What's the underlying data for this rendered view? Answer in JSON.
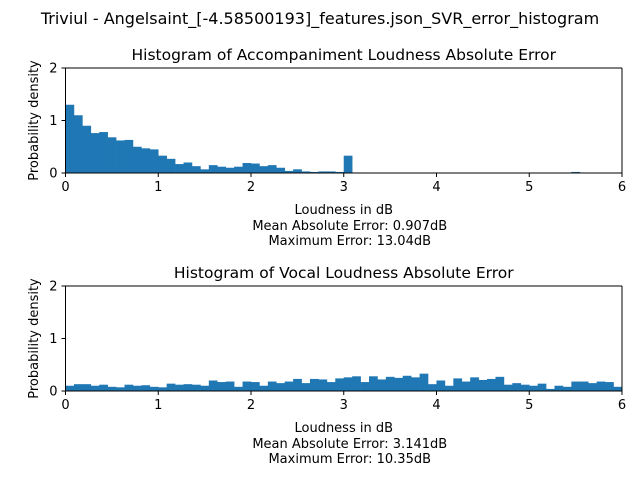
{
  "figure": {
    "title": "Triviul - Angelsaint_[-4.58500193]_features.json_SVR_error_histogram",
    "bar_color": "#1f77b4"
  },
  "chart_data": [
    {
      "type": "bar",
      "title": "Histogram of Accompaniment Loudness Absolute Error",
      "xlabel": "Loudness in dB",
      "ylabel": "Probability density",
      "notes": [
        "Mean Absolute Error: 0.907dB",
        "Maximum Error: 13.04dB"
      ],
      "xlim": [
        0,
        6
      ],
      "ylim": [
        0,
        2
      ],
      "xticks": [
        0,
        1,
        2,
        3,
        4,
        5,
        6
      ],
      "yticks": [
        0,
        1,
        2
      ],
      "bin_width": 0.0909,
      "values": [
        1.3,
        1.1,
        0.9,
        0.76,
        0.78,
        0.68,
        0.62,
        0.63,
        0.5,
        0.47,
        0.45,
        0.33,
        0.27,
        0.17,
        0.2,
        0.13,
        0.07,
        0.15,
        0.12,
        0.1,
        0.12,
        0.19,
        0.18,
        0.13,
        0.15,
        0.1,
        0.04,
        0.07,
        0.03,
        0.02,
        0.03,
        0.03,
        0.02,
        0.33,
        0.01,
        0.0,
        0.0,
        0.0,
        0.0,
        0.0,
        0.0,
        0.0,
        0.0,
        0.0,
        0.0,
        0.0,
        0.0,
        0.0,
        0.0,
        0.0,
        0.0,
        0.0,
        0.0,
        0.0,
        0.0,
        0.0,
        0.0,
        0.0,
        0.0,
        0.0,
        0.02,
        0.0,
        0.0,
        0.0,
        0.0,
        0.0
      ]
    },
    {
      "type": "bar",
      "title": "Histogram of Vocal Loudness Absolute Error",
      "xlabel": "Loudness in dB",
      "ylabel": "Probability density",
      "notes": [
        "Mean Absolute Error: 3.141dB",
        "Maximum Error: 10.35dB"
      ],
      "xlim": [
        0,
        6
      ],
      "ylim": [
        0,
        2
      ],
      "xticks": [
        0,
        1,
        2,
        3,
        4,
        5,
        6
      ],
      "yticks": [
        0,
        1,
        2
      ],
      "bin_width": 0.0909,
      "values": [
        0.1,
        0.13,
        0.13,
        0.1,
        0.12,
        0.08,
        0.07,
        0.12,
        0.1,
        0.11,
        0.08,
        0.07,
        0.14,
        0.12,
        0.13,
        0.12,
        0.1,
        0.2,
        0.17,
        0.18,
        0.08,
        0.18,
        0.17,
        0.1,
        0.18,
        0.15,
        0.18,
        0.23,
        0.15,
        0.23,
        0.22,
        0.17,
        0.24,
        0.26,
        0.28,
        0.17,
        0.28,
        0.22,
        0.27,
        0.25,
        0.29,
        0.26,
        0.33,
        0.13,
        0.2,
        0.1,
        0.24,
        0.18,
        0.26,
        0.21,
        0.23,
        0.27,
        0.12,
        0.15,
        0.12,
        0.1,
        0.14,
        0.04,
        0.1,
        0.08,
        0.18,
        0.18,
        0.15,
        0.18,
        0.17,
        0.08
      ]
    }
  ]
}
